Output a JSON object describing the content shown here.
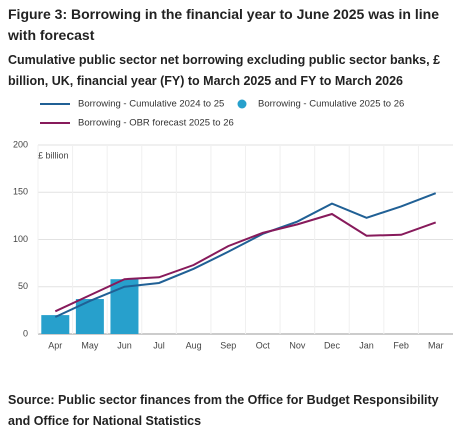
{
  "chart_data": {
    "type": "line",
    "title": "Figure 3: Borrowing in the financial year to June 2025 was in line with forecast",
    "subtitle": "Cumulative public sector net borrowing excluding public sector banks, £ billion, UK, financial year (FY) to March 2025 and FY to March 2026",
    "y_label": "£ billion",
    "source": "Source: Public sector finances from the Office for Budget Responsibility and Office for National Statistics",
    "categories": [
      "Apr",
      "May",
      "Jun",
      "Jul",
      "Aug",
      "Sep",
      "Oct",
      "Nov",
      "Dec",
      "Jan",
      "Feb",
      "Mar"
    ],
    "series": [
      {
        "name": "Borrowing - Cumulative 2024 to 25",
        "type": "line",
        "color": "#206095",
        "values": [
          18,
          35,
          50,
          54,
          69,
          87,
          106,
          119,
          138,
          123,
          135,
          149
        ]
      },
      {
        "name": "Borrowing - Cumulative 2025 to 26",
        "type": "bar",
        "color": "#27a0cc",
        "values": [
          20,
          37,
          58,
          null,
          null,
          null,
          null,
          null,
          null,
          null,
          null,
          null
        ]
      },
      {
        "name": "Borrowing - OBR forecast 2025 to 26",
        "type": "line",
        "color": "#871a5b",
        "values": [
          24,
          41,
          58,
          60,
          73,
          93,
          107,
          116,
          127,
          104,
          105,
          118
        ]
      }
    ],
    "ylim": [
      0,
      200
    ],
    "yticks": [
      0,
      50,
      100,
      150,
      200
    ],
    "grid": true
  }
}
